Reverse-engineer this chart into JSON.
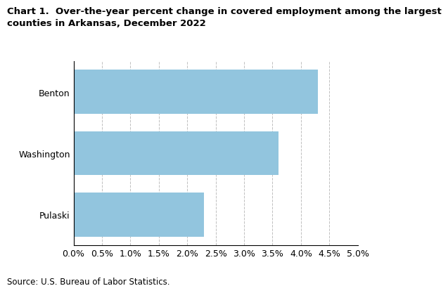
{
  "title_line1": "Chart 1.  Over-the-year percent change in covered employment among the largest",
  "title_line2": "counties in Arkansas, December 2022",
  "categories": [
    "Pulaski",
    "Washington",
    "Benton"
  ],
  "values": [
    2.3,
    3.6,
    4.3
  ],
  "bar_color": "#92c5de",
  "xlim": [
    0,
    5.0
  ],
  "xticks": [
    0.0,
    0.5,
    1.0,
    1.5,
    2.0,
    2.5,
    3.0,
    3.5,
    4.0,
    4.5,
    5.0
  ],
  "source": "Source: U.S. Bureau of Labor Statistics.",
  "background_color": "#ffffff",
  "grid_color": "#c0c0c0",
  "title_fontsize": 9.5,
  "tick_fontsize": 9,
  "source_fontsize": 8.5,
  "bar_height": 0.72
}
